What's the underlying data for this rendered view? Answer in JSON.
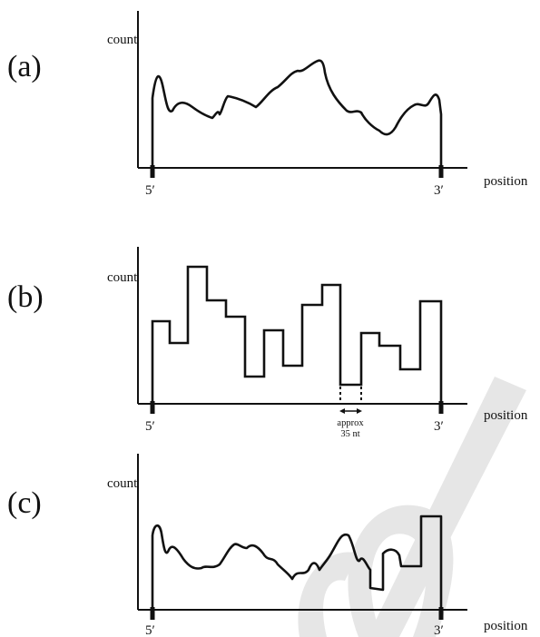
{
  "colors": {
    "ink": "#111111",
    "watermark": "#e6e6e6",
    "background": "#ffffff"
  },
  "panels": [
    {
      "id": "a",
      "label": "(a)",
      "ylabel": "count",
      "xlabel": "position",
      "left_end": "5′",
      "right_end": "3′",
      "profile": "smooth coverage curve"
    },
    {
      "id": "b",
      "label": "(b)",
      "ylabel": "count",
      "xlabel": "position",
      "left_end": "5′",
      "right_end": "3′",
      "profile": "binned step histogram",
      "annotation": {
        "line1": "approx",
        "line2": "35 nt"
      }
    },
    {
      "id": "c",
      "label": "(c)",
      "ylabel": "count",
      "xlabel": "position",
      "left_end": "5′",
      "right_end": "3′",
      "profile": "smooth curve with step segments at the 3′ end"
    }
  ]
}
